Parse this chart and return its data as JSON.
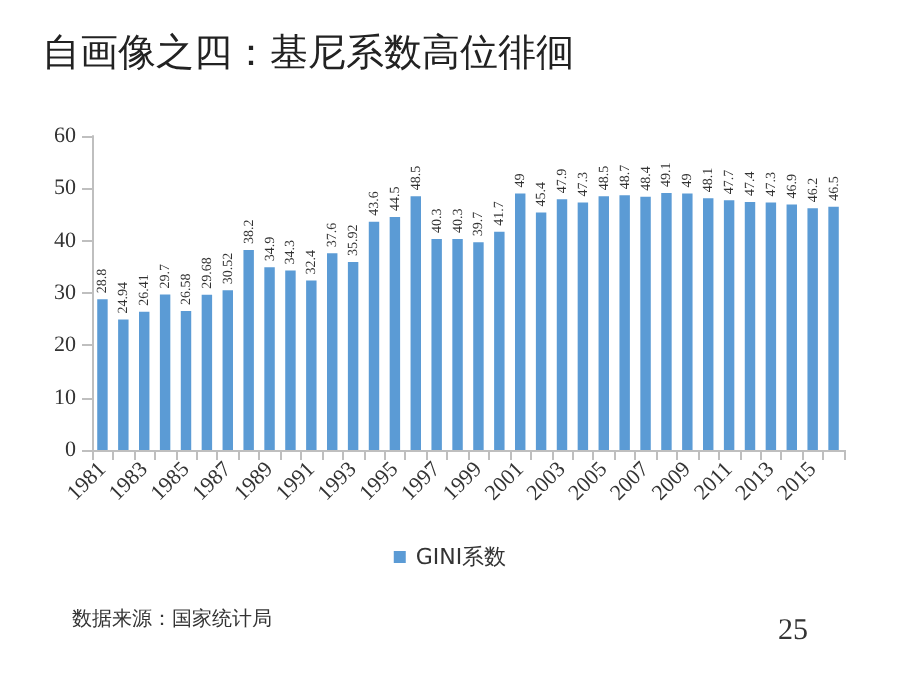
{
  "chart_data": {
    "type": "bar",
    "title": "自画像之四：基尼系数高位徘徊",
    "categories": [
      "1981",
      null,
      "1983",
      null,
      "1985",
      null,
      "1987",
      null,
      "1989",
      null,
      "1991",
      null,
      "1993",
      null,
      "1995",
      null,
      "1997",
      null,
      "1999",
      null,
      "2001",
      null,
      "2003",
      null,
      "2005",
      null,
      "2007",
      null,
      "2009",
      null,
      "2011",
      null,
      "2013",
      null,
      "2015",
      null
    ],
    "series": [
      {
        "name": "GINI系数",
        "color": "#5b9bd5",
        "values": [
          28.8,
          24.94,
          26.41,
          29.7,
          26.58,
          29.68,
          30.52,
          38.2,
          34.9,
          34.3,
          32.4,
          37.6,
          35.92,
          43.6,
          44.5,
          48.5,
          40.3,
          40.3,
          39.7,
          41.7,
          49,
          45.4,
          47.9,
          47.3,
          48.5,
          48.7,
          48.4,
          49.1,
          49,
          48.1,
          47.7,
          47.4,
          47.3,
          46.9,
          46.2,
          46.5
        ]
      }
    ],
    "ylim": [
      0,
      60
    ],
    "yticks": [
      0,
      10,
      20,
      30,
      40,
      50,
      60
    ],
    "grid": false,
    "legend": "bottom",
    "data_labels": true,
    "annotations": [
      "数据来源：国家统计局",
      "25"
    ]
  }
}
